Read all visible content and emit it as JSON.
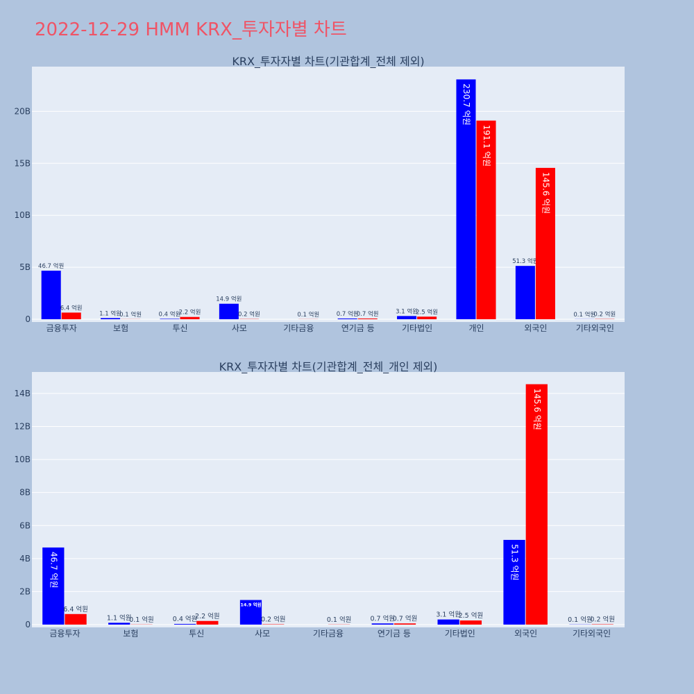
{
  "title": "2022-12-29 HMM KRX_투자자별 차트",
  "colors": {
    "page_bg": "#b0c4de",
    "plot_bg": "#e5ecf6",
    "title": "#ef5466",
    "buy": "#0000ff",
    "sell": "#ff0000"
  },
  "chart_data": [
    {
      "type": "bar",
      "title": "KRX_투자자별 차트(기관합계_전체 제외)",
      "categories": [
        "금융투자",
        "보험",
        "투신",
        "사모",
        "기타금융",
        "연기금 등",
        "기타법인",
        "개인",
        "외국인",
        "기타외국인"
      ],
      "series": [
        {
          "color": "#0000ff",
          "values": [
            4.67,
            0.11,
            0.04,
            1.49,
            0,
            0.07,
            0.31,
            23.07,
            5.13,
            0.01
          ],
          "labels": [
            "46.7 억원",
            "1.1 억원",
            "0.4 억원",
            "14.9 억원",
            "",
            "0.7 억원",
            "3.1 억원",
            "230.7 억원",
            "51.3 억원",
            "0.1 억원"
          ]
        },
        {
          "color": "#ff0000",
          "values": [
            0.64,
            0.01,
            0.22,
            0.02,
            0.01,
            0.07,
            0.25,
            19.11,
            14.56,
            0.02
          ],
          "labels": [
            "6.4 억원",
            "0.1 억원",
            "2.2 억원",
            "0.2 억원",
            "0.1 억원",
            "0.7 억원",
            "2.5 억원",
            "191.1 억원",
            "145.6 억원",
            "0.2 억원"
          ]
        }
      ],
      "ylim": [
        0,
        24.3
      ],
      "yticks": [
        0,
        5,
        10,
        15,
        20
      ],
      "ytick_labels": [
        "0",
        "5B",
        "10B",
        "15B",
        "20B"
      ],
      "xlabel": "",
      "ylabel": "",
      "grid": true
    },
    {
      "type": "bar",
      "title": "KRX_투자자별 차트(기관합계_전체_개인 제외)",
      "categories": [
        "금융투자",
        "보험",
        "투신",
        "사모",
        "기타금융",
        "연기금 등",
        "기타법인",
        "외국인",
        "기타외국인"
      ],
      "series": [
        {
          "color": "#0000ff",
          "values": [
            4.67,
            0.11,
            0.04,
            1.49,
            0,
            0.07,
            0.31,
            5.13,
            0.01
          ],
          "labels": [
            "46.7 억원",
            "1.1 억원",
            "0.4 억원",
            "14.9 억원",
            "",
            "0.7 억원",
            "3.1 억원",
            "51.3 억원",
            "0.1 억원"
          ]
        },
        {
          "color": "#ff0000",
          "values": [
            0.64,
            0.01,
            0.22,
            0.02,
            0.01,
            0.07,
            0.25,
            14.56,
            0.02
          ],
          "labels": [
            "6.4 억원",
            "0.1 억원",
            "2.2 억원",
            "0.2 억원",
            "0.1 억원",
            "0.7 억원",
            "2.5 억원",
            "145.6 억원",
            "0.2 억원"
          ]
        }
      ],
      "ylim": [
        0,
        15.3
      ],
      "yticks": [
        0,
        2,
        4,
        6,
        8,
        10,
        12,
        14
      ],
      "ytick_labels": [
        "0",
        "2B",
        "4B",
        "6B",
        "8B",
        "10B",
        "12B",
        "14B"
      ],
      "xlabel": "",
      "ylabel": "",
      "grid": true
    }
  ]
}
